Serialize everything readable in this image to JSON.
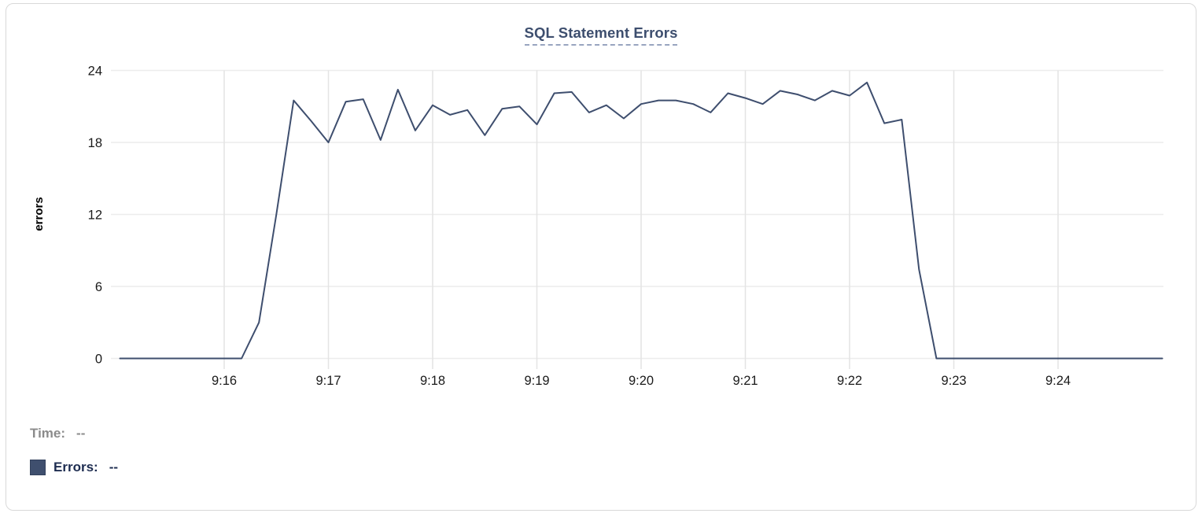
{
  "chart_data": {
    "type": "line",
    "title": "SQL Statement Errors",
    "ylabel": "errors",
    "xlabel": "",
    "x_start": "9:15:00",
    "x_end": "9:25:00",
    "x_step_seconds": 10,
    "x_tick_labels": [
      "9:16",
      "9:17",
      "9:18",
      "9:19",
      "9:20",
      "9:21",
      "9:22",
      "9:23",
      "9:24"
    ],
    "y_ticks": [
      0,
      6,
      12,
      18,
      24
    ],
    "ylim": [
      0,
      24
    ],
    "grid": true,
    "legend_position": "bottom-left",
    "series": [
      {
        "name": "Errors",
        "color": "#3e4e6e",
        "values": [
          0,
          0,
          0,
          0,
          0,
          0,
          0,
          0,
          3,
          12,
          21.5,
          19.8,
          18,
          21.4,
          21.6,
          18.2,
          22.4,
          19,
          21.1,
          20.3,
          20.7,
          18.6,
          20.8,
          21,
          19.5,
          22.1,
          22.2,
          20.5,
          21.1,
          20,
          21.2,
          21.5,
          21.5,
          21.2,
          20.5,
          22.1,
          21.7,
          21.2,
          22.3,
          22,
          21.5,
          22.3,
          21.9,
          23,
          19.6,
          19.9,
          7.4,
          0,
          0,
          0,
          0,
          0,
          0,
          0,
          0,
          0,
          0,
          0,
          0,
          0,
          0
        ]
      }
    ]
  },
  "legend": {
    "time_label": "Time:",
    "time_value": "--",
    "errors_label": "Errors:",
    "errors_value": "--",
    "swatch_color": "#3f4f6e"
  },
  "colors": {
    "title": "#3d4e6e",
    "title_underline": "#98a4bf",
    "line": "#3e4e6e",
    "grid_horizontal": "#ececec",
    "grid_vertical": "#e4e4e4",
    "axis_text": "#1a1a1a",
    "time_label": "#8b8b8b",
    "errors_label": "#1d2c50",
    "card_border": "#d9d9d9"
  }
}
